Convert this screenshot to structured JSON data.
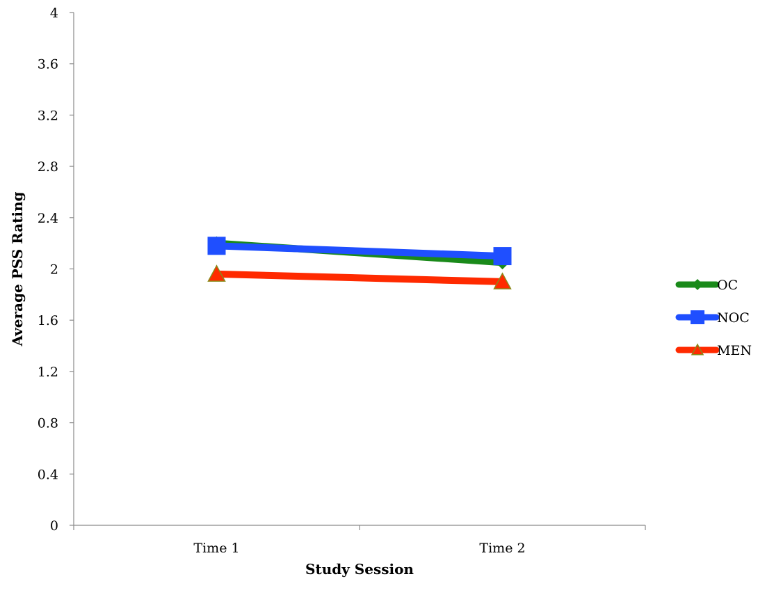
{
  "chart_data": {
    "type": "line",
    "title": "",
    "xlabel": "Study Session",
    "ylabel": "Average PSS Rating",
    "categories": [
      "Time 1",
      "Time 2"
    ],
    "ylim": [
      0,
      4
    ],
    "yticks": [
      "0",
      "0.4",
      "0.8",
      "1.2",
      "1.6",
      "2",
      "2.4",
      "2.8",
      "3.2",
      "3.6",
      "4"
    ],
    "grid": false,
    "legend_position": "right",
    "series": [
      {
        "name": "OC",
        "values": [
          2.2,
          2.05
        ],
        "color": "#1a8a1a",
        "marker": "diamond"
      },
      {
        "name": "NOC",
        "values": [
          2.18,
          2.1
        ],
        "color": "#1f4fff",
        "marker": "square"
      },
      {
        "name": "MEN",
        "values": [
          1.96,
          1.9
        ],
        "color": "#ff2a00",
        "marker": "triangle"
      }
    ]
  }
}
